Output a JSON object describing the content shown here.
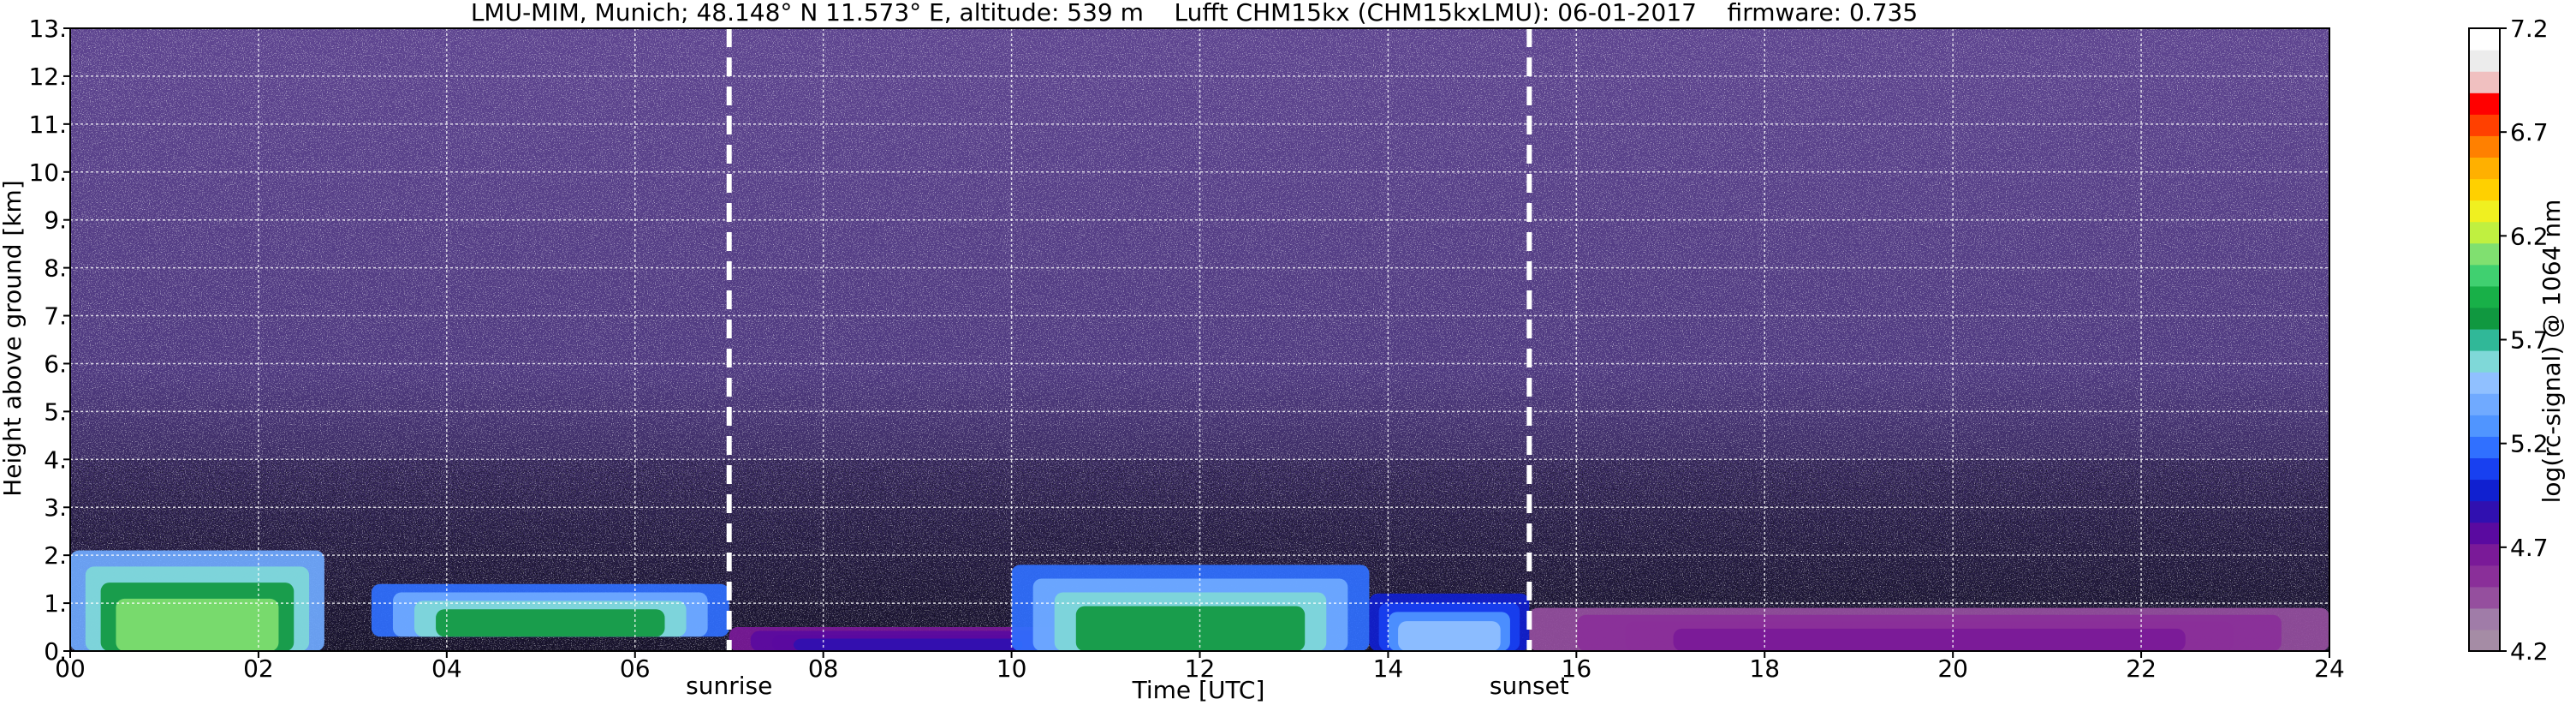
{
  "chart_data": {
    "type": "heatmap",
    "title": "LMU-MIM, Munich; 48.148° N 11.573° E, altitude: 539 m    Lufft CHM15kx (CHM15kxLMU): 06-01-2017    firmware: 0.735",
    "xlabel": "Time [UTC]",
    "ylabel": "Height above ground [km]",
    "xlim": [
      0,
      24
    ],
    "ylim": [
      0,
      13
    ],
    "x_ticks": [
      0,
      2,
      4,
      6,
      8,
      10,
      12,
      14,
      16,
      18,
      20,
      22,
      24
    ],
    "x_tick_labels": [
      "00",
      "02",
      "04",
      "06",
      "08",
      "10",
      "12",
      "14",
      "16",
      "18",
      "20",
      "22",
      "24"
    ],
    "y_ticks": [
      0,
      1,
      2,
      3,
      4,
      5,
      6,
      7,
      8,
      9,
      10,
      11,
      12,
      13
    ],
    "y_tick_labels": [
      "0.",
      "1.",
      "2.",
      "3.",
      "4.",
      "5.",
      "6.",
      "7.",
      "8.",
      "9.",
      "10.",
      "11.",
      "12.",
      "13."
    ],
    "grid": true,
    "annotations": [
      {
        "label": "sunrise",
        "x": 7.0
      },
      {
        "label": "sunset",
        "x": 15.5
      }
    ],
    "colorbar": {
      "label": "log(rc-signal) @ 1064 nm",
      "range": [
        4.2,
        7.2
      ],
      "ticks": [
        4.2,
        4.7,
        5.2,
        5.7,
        6.2,
        6.7,
        7.2
      ],
      "tick_labels": [
        "4.2",
        "4.7",
        "5.2",
        "5.7",
        "6.2",
        "6.7",
        "7.2"
      ],
      "colors": [
        "#a58ca5",
        "#a07ca8",
        "#954f9e",
        "#8a2f99",
        "#7a1a98",
        "#5a0aa0",
        "#3010b0",
        "#1020d0",
        "#1840f0",
        "#3070ff",
        "#5095ff",
        "#70aaff",
        "#90c0ff",
        "#7fd8d8",
        "#30b898",
        "#109840",
        "#18b048",
        "#40d070",
        "#80e070",
        "#c0f040",
        "#f0f020",
        "#ffd000",
        "#ffb000",
        "#ff8000",
        "#ff4000",
        "#ff0000",
        "#f0c0c0",
        "#ececec",
        "#ffffff"
      ]
    },
    "features": [
      {
        "x": [
          0.0,
          2.7
        ],
        "y": [
          0.0,
          2.1
        ],
        "signal": 6.3
      },
      {
        "x": [
          3.2,
          7.0
        ],
        "y": [
          0.3,
          1.4
        ],
        "signal": 6.0
      },
      {
        "x": [
          7.0,
          10.8
        ],
        "y": [
          0.0,
          0.5
        ],
        "signal": 5.0
      },
      {
        "x": [
          10.0,
          13.8
        ],
        "y": [
          0.0,
          1.8
        ],
        "signal": 6.0
      },
      {
        "x": [
          13.8,
          15.5
        ],
        "y": [
          0.0,
          1.2
        ],
        "signal": 5.6
      },
      {
        "x": [
          15.5,
          24.0
        ],
        "y": [
          0.0,
          0.9
        ],
        "signal": 4.7
      }
    ]
  }
}
